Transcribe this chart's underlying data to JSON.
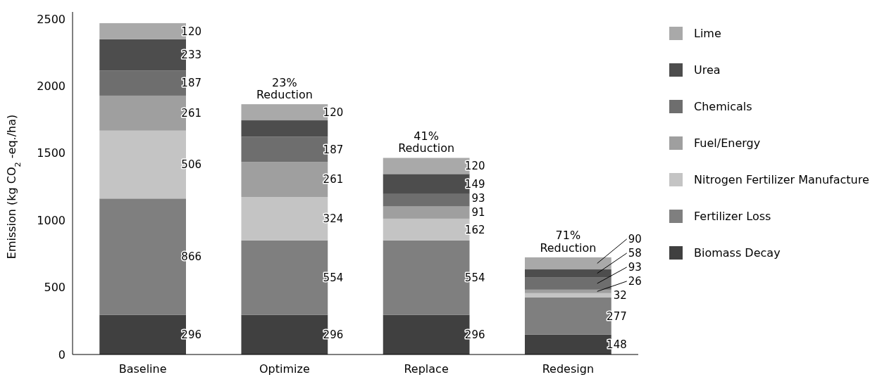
{
  "chart_data": {
    "type": "bar",
    "stacked": true,
    "ylabel": "Emission (kg CO$_{2}$ -eq./ha)",
    "categories": [
      "Baseline",
      "Optimize",
      "Replace",
      "Redesign"
    ],
    "ylim": [
      0,
      2500
    ],
    "yticks": [
      0,
      500,
      1000,
      1500,
      2000,
      2500
    ],
    "grid": false,
    "legend": "right",
    "series": [
      {
        "name": "Biomass Decay",
        "color": "#404040",
        "values": [
          296,
          296,
          296,
          148
        ],
        "value_labels": [
          "296",
          "296",
          "296",
          "148"
        ]
      },
      {
        "name": "Fertilizer Loss",
        "color": "#7f7f7f",
        "values": [
          866,
          554,
          554,
          277
        ],
        "value_labels": [
          "866",
          "554",
          "554",
          "277"
        ]
      },
      {
        "name": "Nitrogen Fertilizer Manufacture",
        "color": "#c4c4c4",
        "values": [
          506,
          324,
          162,
          32
        ],
        "value_labels": [
          "506",
          "324",
          "162",
          "32"
        ]
      },
      {
        "name": "Fuel/Energy",
        "color": "#9f9f9f",
        "values": [
          261,
          261,
          91,
          26
        ],
        "value_labels": [
          "261",
          "261",
          "91",
          "26"
        ]
      },
      {
        "name": "Chemicals",
        "color": "#6e6e6e",
        "values": [
          187,
          187,
          93,
          93
        ],
        "value_labels": [
          "187",
          "187",
          "93",
          "93"
        ]
      },
      {
        "name": "Urea",
        "color": "#4d4d4d",
        "values": [
          233,
          123,
          149,
          58
        ],
        "value_labels": [
          "233",
          null,
          "149",
          "58"
        ]
      },
      {
        "name": "Lime",
        "color": "#a9a9a9",
        "values": [
          120,
          120,
          120,
          90
        ],
        "value_labels": [
          "120",
          "120",
          "120",
          "90"
        ]
      }
    ],
    "annotations": [
      {
        "text": "23% Reduction",
        "x": "Optimize",
        "y": 1865
      },
      {
        "text": "41% Reduction",
        "x": "Replace",
        "y": 1465
      },
      {
        "text": "71% Reduction",
        "x": "Redesign",
        "y": 724
      }
    ]
  }
}
